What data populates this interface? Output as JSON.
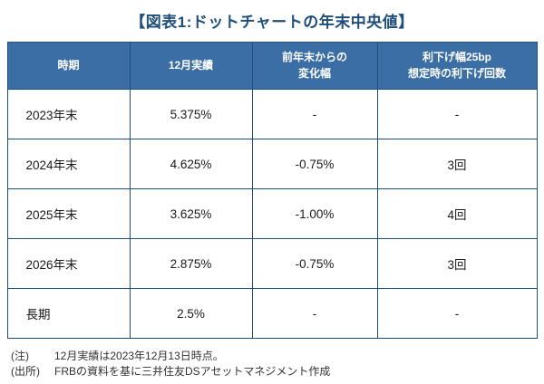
{
  "title": "【図表1:ドットチャートの年末中央値】",
  "colors": {
    "title_text": "#1f4e79",
    "header_bg": "#3a6ea5",
    "header_text": "#ffffff",
    "border": "#1f4e79"
  },
  "chart_data": {
    "type": "table",
    "title": "図表1:ドットチャートの年末中央値",
    "columns": [
      "時期",
      "12月実績",
      "前年末からの変化幅",
      "利下げ幅25bp想定時の利下げ回数"
    ],
    "rows": [
      [
        "2023年末",
        "5.375%",
        "-",
        "-"
      ],
      [
        "2024年末",
        "4.625%",
        "-0.75%",
        "3回"
      ],
      [
        "2025年末",
        "3.625%",
        "-1.00%",
        "4回"
      ],
      [
        "2026年末",
        "2.875%",
        "-0.75%",
        "3回"
      ],
      [
        "長期",
        "2.5%",
        "-",
        "-"
      ]
    ]
  },
  "table": {
    "headers_lines": [
      [
        "時期"
      ],
      [
        "12月実績"
      ],
      [
        "前年末からの",
        "変化幅"
      ],
      [
        "利下げ幅25bp",
        "想定時の利下げ回数"
      ]
    ],
    "rows": [
      {
        "period": "2023年末",
        "actual": "5.375%",
        "change": "-",
        "cuts": "-"
      },
      {
        "period": "2024年末",
        "actual": "4.625%",
        "change": "-0.75%",
        "cuts": "3回"
      },
      {
        "period": "2025年末",
        "actual": "3.625%",
        "change": "-1.00%",
        "cuts": "4回"
      },
      {
        "period": "2026年末",
        "actual": "2.875%",
        "change": "-0.75%",
        "cuts": "3回"
      },
      {
        "period": "長期",
        "actual": "2.5%",
        "change": "-",
        "cuts": "-"
      }
    ]
  },
  "notes": [
    {
      "label": "(注)",
      "text": "12月実績は2023年12月13日時点。"
    },
    {
      "label": "(出所)",
      "text": "FRBの資料を基に三井住友DSアセットマネジメント作成"
    }
  ]
}
